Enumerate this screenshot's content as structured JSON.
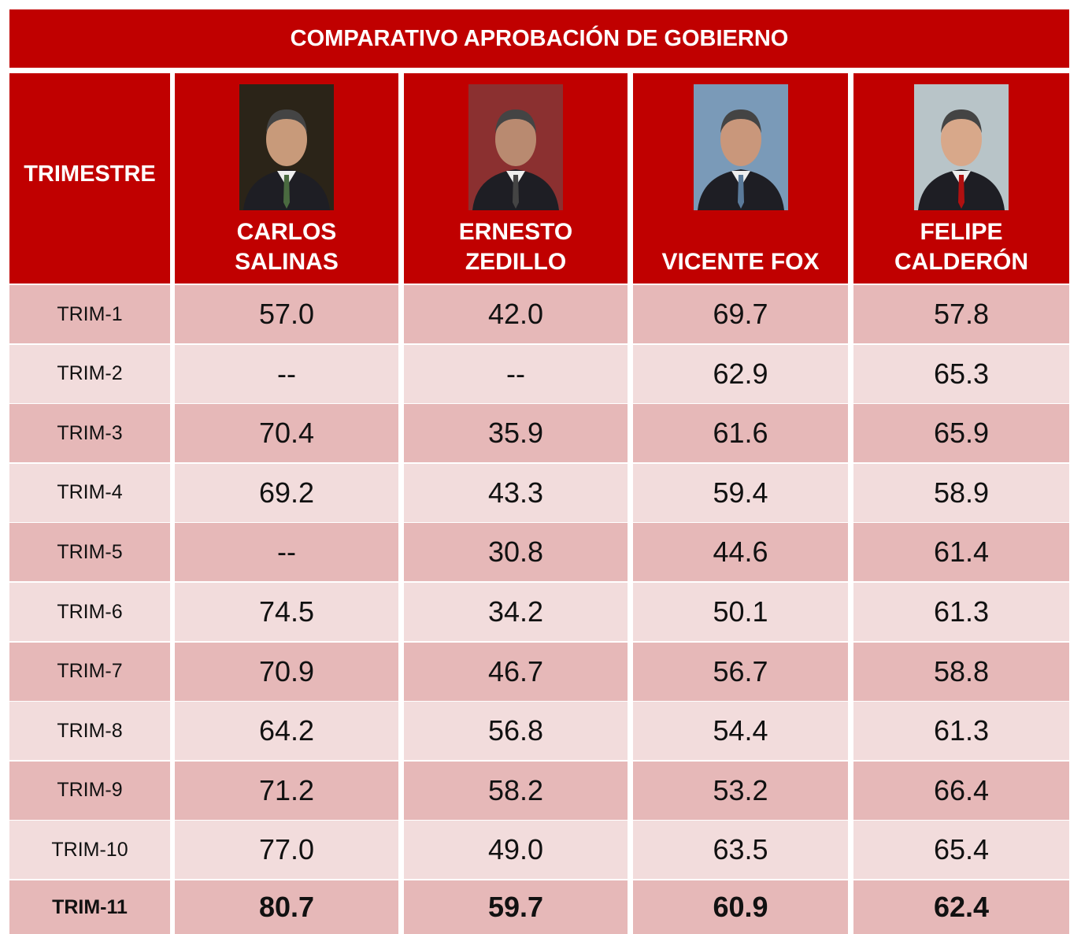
{
  "title": "COMPARATIVO APROBACIÓN DE GOBIERNO",
  "table": {
    "header": [
      "TRIMESTRE",
      "CARLOS SALINAS",
      "ERNESTO ZEDILLO",
      "VICENTE FOX",
      "FELIPE CALDERÓN"
    ],
    "rows": [
      [
        "TRIM-1",
        "57.0",
        "42.0",
        "69.7",
        "57.8"
      ],
      [
        "TRIM-2",
        "--",
        "--",
        "62.9",
        "65.3"
      ],
      [
        "TRIM-3",
        "70.4",
        "35.9",
        "61.6",
        "65.9"
      ],
      [
        "TRIM-4",
        "69.2",
        "43.3",
        "59.4",
        "58.9"
      ],
      [
        "TRIM-5",
        "--",
        "30.8",
        "44.6",
        "61.4"
      ],
      [
        "TRIM-6",
        "74.5",
        "34.2",
        "50.1",
        "61.3"
      ],
      [
        "TRIM-7",
        "70.9",
        "46.7",
        "56.7",
        "58.8"
      ],
      [
        "TRIM-8",
        "64.2",
        "56.8",
        "54.4",
        "61.3"
      ],
      [
        "TRIM-9",
        "71.2",
        "58.2",
        "53.2",
        "66.4"
      ],
      [
        "TRIM-10",
        "77.0",
        "49.0",
        "63.5",
        "65.4"
      ],
      [
        "TRIM-11",
        "80.7",
        "59.7",
        "60.9",
        "62.4"
      ]
    ]
  }
}
